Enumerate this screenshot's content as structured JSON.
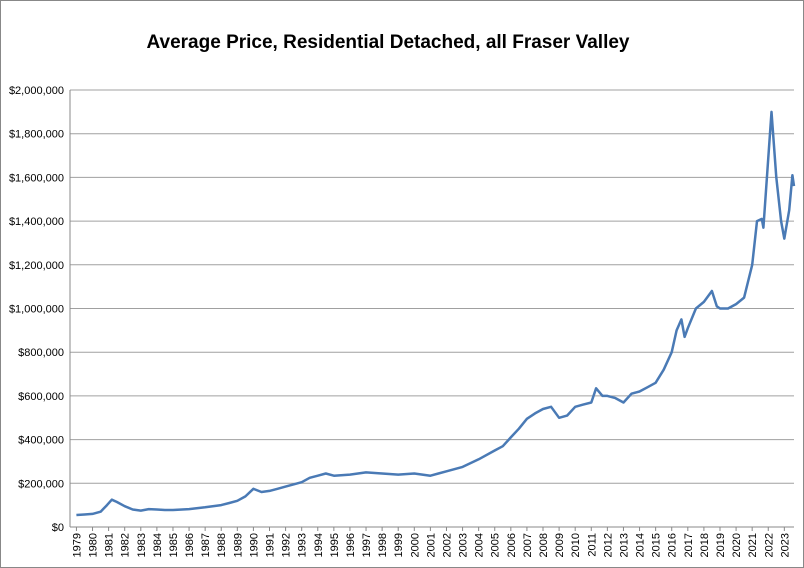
{
  "chart_data": {
    "type": "line",
    "title": "Average Price, Residential Detached, all Fraser Valley",
    "color": "#4a7ab5",
    "grid": true,
    "x": [
      1979.0,
      1979.5,
      1980.0,
      1980.5,
      1980.9,
      1981.2,
      1981.5,
      1982.0,
      1982.5,
      1983.0,
      1983.5,
      1984.0,
      1984.5,
      1985.0,
      1986.0,
      1987.0,
      1988.0,
      1988.5,
      1989.0,
      1989.5,
      1990.0,
      1990.5,
      1991.0,
      1991.5,
      1992.0,
      1993.0,
      1993.5,
      1994.0,
      1994.5,
      1995.0,
      1996.0,
      1997.0,
      1998.0,
      1999.0,
      2000.0,
      2001.0,
      2001.5,
      2002.0,
      2003.0,
      2004.0,
      2005.0,
      2005.5,
      2006.0,
      2006.5,
      2007.0,
      2007.5,
      2008.0,
      2008.5,
      2009.0,
      2009.5,
      2010.0,
      2010.5,
      2011.0,
      2011.3,
      2011.7,
      2012.0,
      2012.5,
      2013.0,
      2013.5,
      2014.0,
      2014.5,
      2015.0,
      2015.5,
      2016.0,
      2016.3,
      2016.6,
      2016.8,
      2017.0,
      2017.5,
      2018.0,
      2018.5,
      2018.8,
      2019.0,
      2019.5,
      2020.0,
      2020.5,
      2021.0,
      2021.3,
      2021.6,
      2021.7,
      2022.2,
      2022.5,
      2022.8,
      2023.0,
      2023.3,
      2023.5,
      2023.6
    ],
    "values": [
      55000,
      57000,
      60000,
      70000,
      100000,
      125000,
      115000,
      95000,
      80000,
      75000,
      82000,
      80000,
      78000,
      78000,
      82000,
      90000,
      100000,
      110000,
      120000,
      140000,
      175000,
      160000,
      165000,
      175000,
      185000,
      205000,
      225000,
      235000,
      245000,
      235000,
      240000,
      250000,
      245000,
      240000,
      245000,
      235000,
      245000,
      255000,
      275000,
      310000,
      350000,
      370000,
      410000,
      450000,
      495000,
      520000,
      540000,
      550000,
      500000,
      510000,
      550000,
      560000,
      570000,
      635000,
      600000,
      600000,
      590000,
      570000,
      610000,
      620000,
      640000,
      660000,
      720000,
      800000,
      900000,
      950000,
      870000,
      910000,
      1000000,
      1030000,
      1080000,
      1010000,
      1000000,
      1000000,
      1020000,
      1050000,
      1200000,
      1400000,
      1410000,
      1370000,
      1900000,
      1600000,
      1400000,
      1320000,
      1450000,
      1610000,
      1560000
    ],
    "xlim": [
      1978.6,
      2023.6
    ],
    "xticks": [
      1979,
      1980,
      1981,
      1982,
      1983,
      1984,
      1985,
      1986,
      1987,
      1988,
      1989,
      1990,
      1991,
      1992,
      1993,
      1994,
      1995,
      1996,
      1997,
      1998,
      1999,
      2000,
      2001,
      2002,
      2003,
      2004,
      2005,
      2006,
      2007,
      2008,
      2009,
      2010,
      2011,
      2012,
      2013,
      2014,
      2015,
      2016,
      2017,
      2018,
      2019,
      2020,
      2021,
      2022,
      2023
    ],
    "ylim": [
      0,
      2000000
    ],
    "yticks": [
      {
        "value": 0,
        "label": "$0"
      },
      {
        "value": 200000,
        "label": "$200,000"
      },
      {
        "value": 400000,
        "label": "$400,000"
      },
      {
        "value": 600000,
        "label": "$600,000"
      },
      {
        "value": 800000,
        "label": "$800,000"
      },
      {
        "value": 1000000,
        "label": "$1,000,000"
      },
      {
        "value": 1200000,
        "label": "$1,200,000"
      },
      {
        "value": 1400000,
        "label": "$1,400,000"
      },
      {
        "value": 1600000,
        "label": "$1,600,000"
      },
      {
        "value": 1800000,
        "label": "$1,800,000"
      },
      {
        "value": 2000000,
        "label": "$2,000,000"
      }
    ]
  }
}
